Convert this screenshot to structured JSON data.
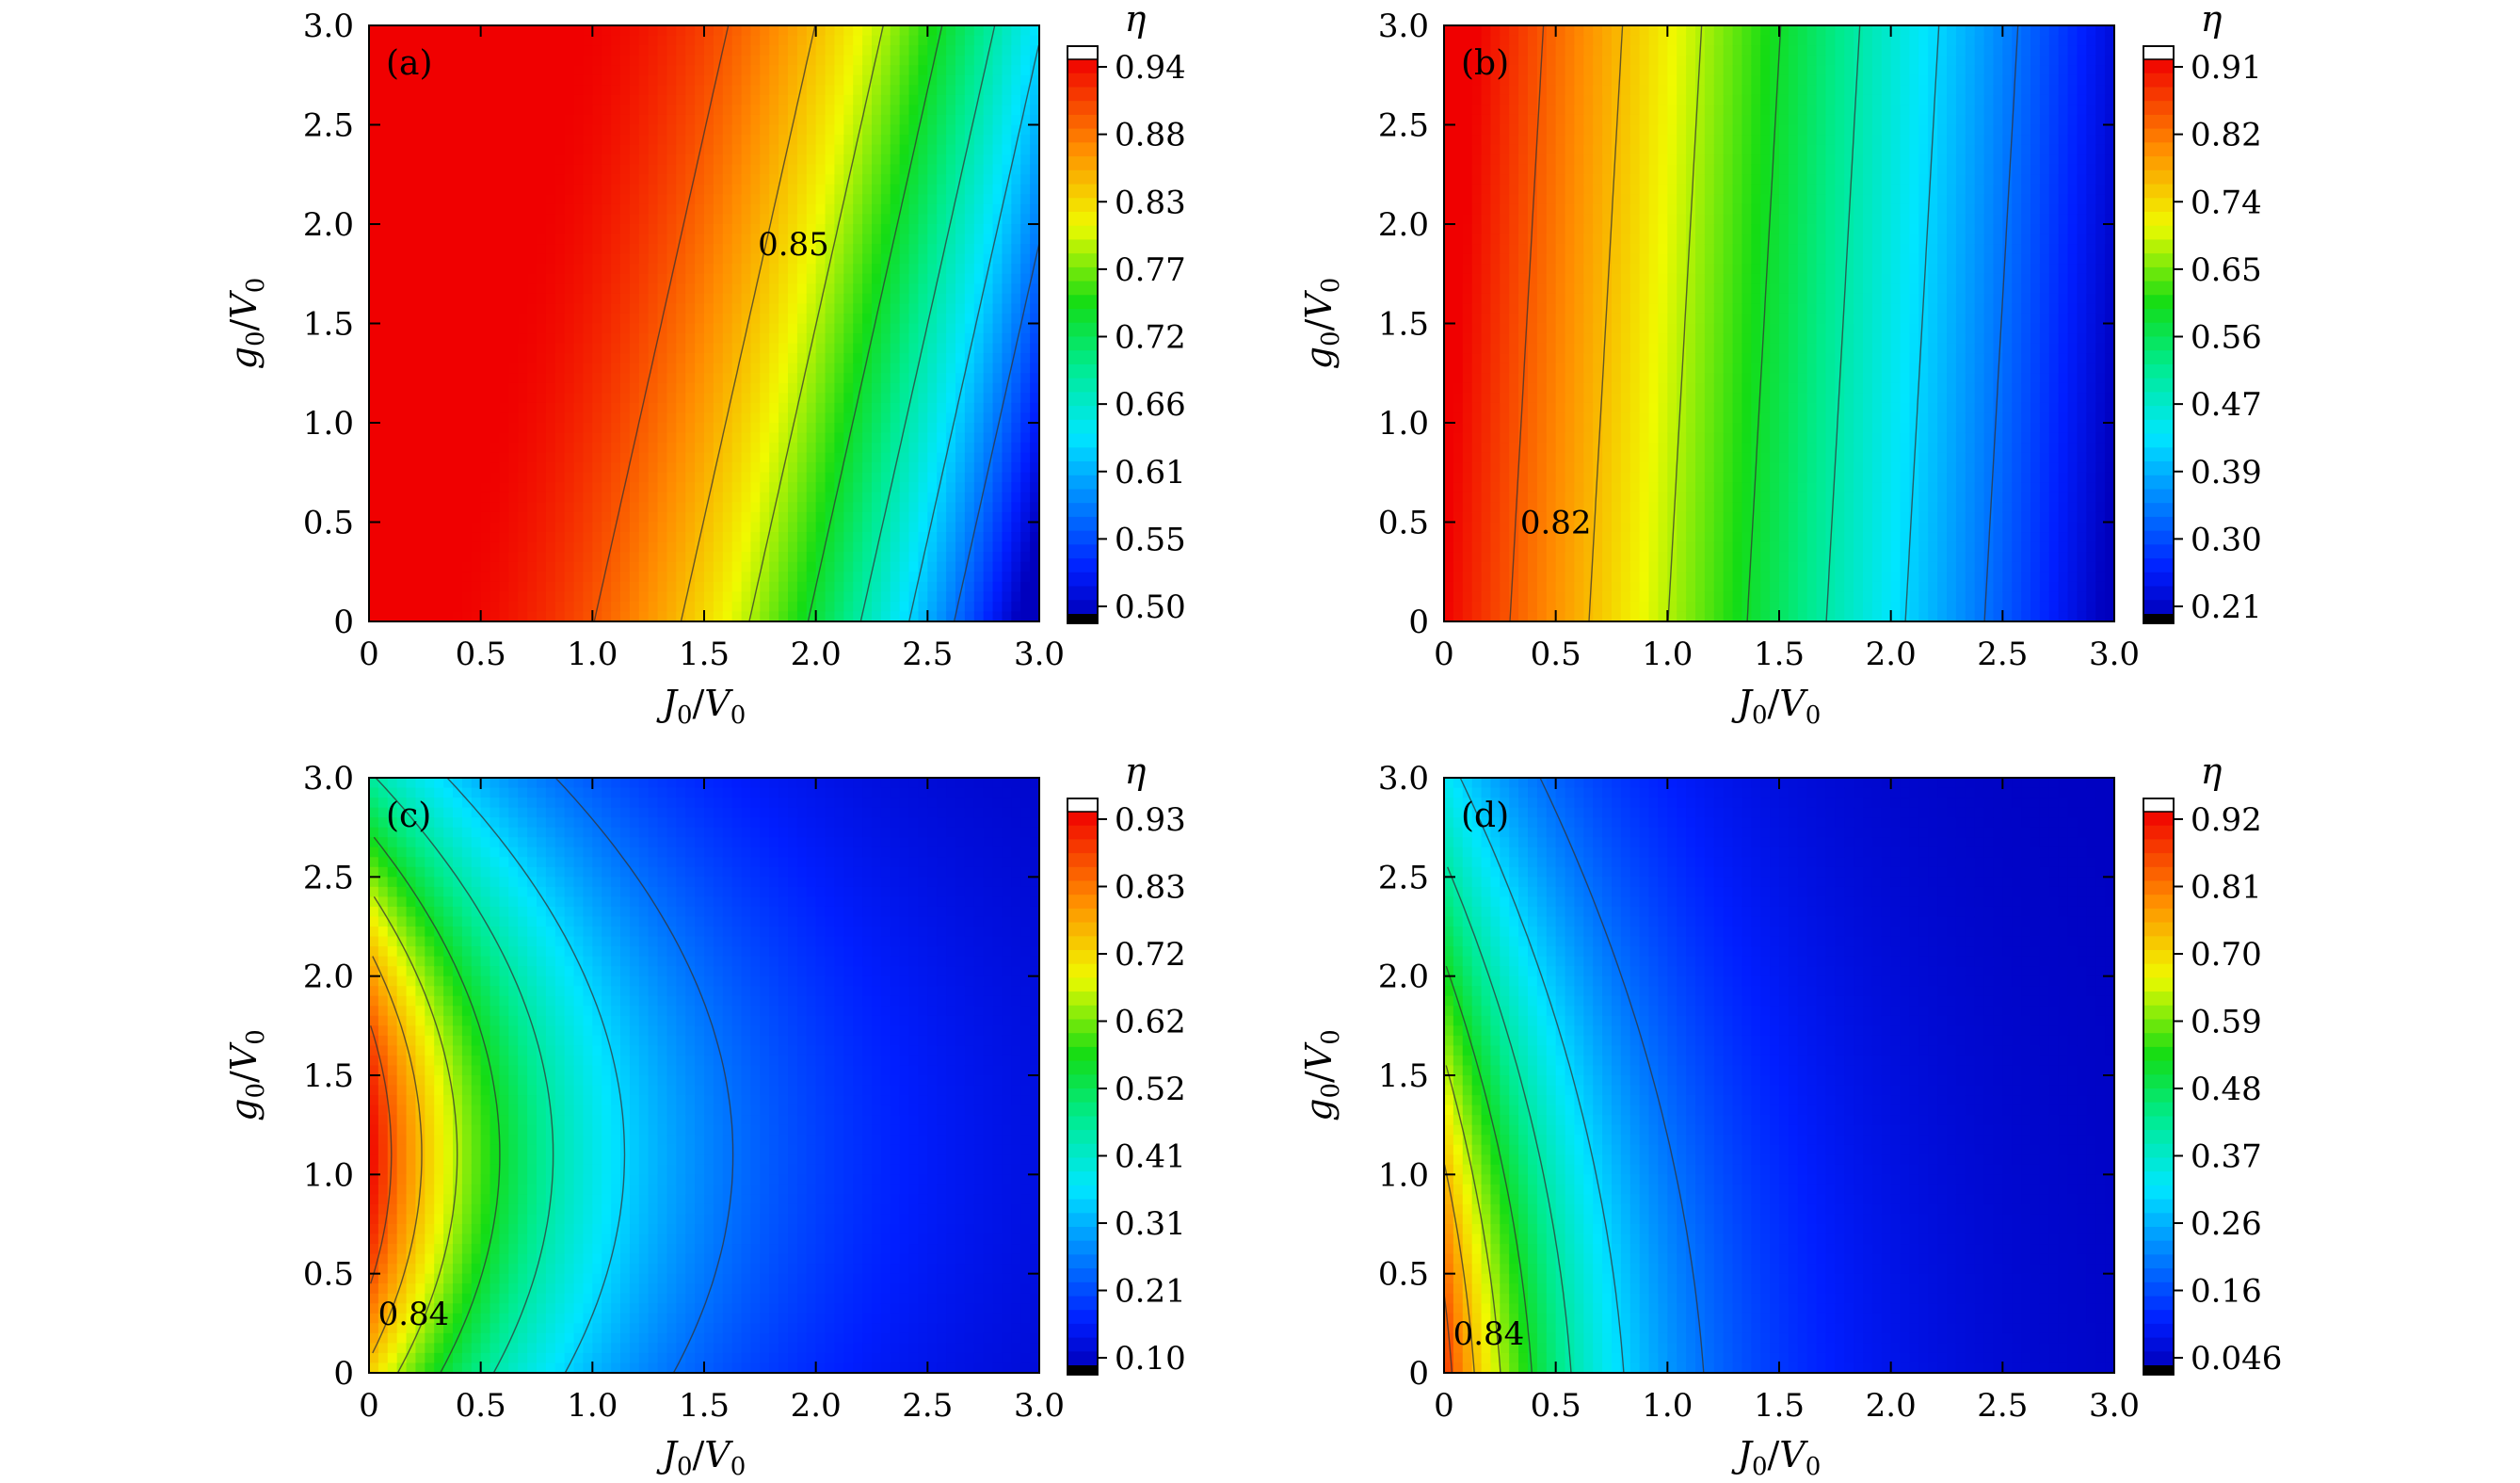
{
  "chart_data": [
    {
      "type": "heatmap",
      "panel_label": "(a)",
      "xlabel": "J0/V0",
      "ylabel": "g0/V0",
      "xlim": [
        0,
        3.0
      ],
      "ylim": [
        0,
        3.0
      ],
      "x_ticks": [
        "0",
        "0.5",
        "1.0",
        "1.5",
        "2.0",
        "2.5",
        "3.0"
      ],
      "y_ticks": [
        "0",
        "0.5",
        "1.0",
        "1.5",
        "2.0",
        "2.5",
        "3.0"
      ],
      "colorbar_label": "η",
      "colorbar_ticks": [
        "0.94",
        "0.88",
        "0.83",
        "0.77",
        "0.72",
        "0.66",
        "0.61",
        "0.55",
        "0.50"
      ],
      "value_range": [
        0.5,
        0.94
      ],
      "contour_label": {
        "text": "0.85",
        "x": 1.9,
        "y": 1.9
      },
      "grid": false
    },
    {
      "type": "heatmap",
      "panel_label": "(b)",
      "xlabel": "J0/V0",
      "ylabel": "g0/V0",
      "xlim": [
        0,
        3.0
      ],
      "ylim": [
        0,
        3.0
      ],
      "x_ticks": [
        "0",
        "0.5",
        "1.0",
        "1.5",
        "2.0",
        "2.5",
        "3.0"
      ],
      "y_ticks": [
        "0",
        "0.5",
        "1.0",
        "1.5",
        "2.0",
        "2.5",
        "3.0"
      ],
      "colorbar_label": "η",
      "colorbar_ticks": [
        "0.91",
        "0.82",
        "0.74",
        "0.65",
        "0.56",
        "0.47",
        "0.39",
        "0.30",
        "0.21"
      ],
      "value_range": [
        0.21,
        0.91
      ],
      "contour_label": {
        "text": "0.82",
        "x": 0.5,
        "y": 0.5
      },
      "grid": false
    },
    {
      "type": "heatmap",
      "panel_label": "(c)",
      "xlabel": "J0/V0",
      "ylabel": "g0/V0",
      "xlim": [
        0,
        3.0
      ],
      "ylim": [
        0,
        3.0
      ],
      "x_ticks": [
        "0",
        "0.5",
        "1.0",
        "1.5",
        "2.0",
        "2.5",
        "3.0"
      ],
      "y_ticks": [
        "0",
        "0.5",
        "1.0",
        "1.5",
        "2.0",
        "2.5",
        "3.0"
      ],
      "colorbar_label": "η",
      "colorbar_ticks": [
        "0.93",
        "0.83",
        "0.72",
        "0.62",
        "0.52",
        "0.41",
        "0.31",
        "0.21",
        "0.10"
      ],
      "value_range": [
        0.1,
        0.93
      ],
      "contour_label": {
        "text": "0.84",
        "x": 0.2,
        "y": 0.3
      },
      "grid": false
    },
    {
      "type": "heatmap",
      "panel_label": "(d)",
      "xlabel": "J0/V0",
      "ylabel": "g0/V0",
      "xlim": [
        0,
        3.0
      ],
      "ylim": [
        0,
        3.0
      ],
      "x_ticks": [
        "0",
        "0.5",
        "1.0",
        "1.5",
        "2.0",
        "2.5",
        "3.0"
      ],
      "y_ticks": [
        "0",
        "0.5",
        "1.0",
        "1.5",
        "2.0",
        "2.5",
        "3.0"
      ],
      "colorbar_label": "η",
      "colorbar_ticks": [
        "0.92",
        "0.81",
        "0.70",
        "0.59",
        "0.48",
        "0.37",
        "0.26",
        "0.16",
        "0.046"
      ],
      "value_range": [
        0.046,
        0.92
      ],
      "contour_label": {
        "text": "0.84",
        "x": 0.2,
        "y": 0.2
      },
      "grid": false
    }
  ]
}
